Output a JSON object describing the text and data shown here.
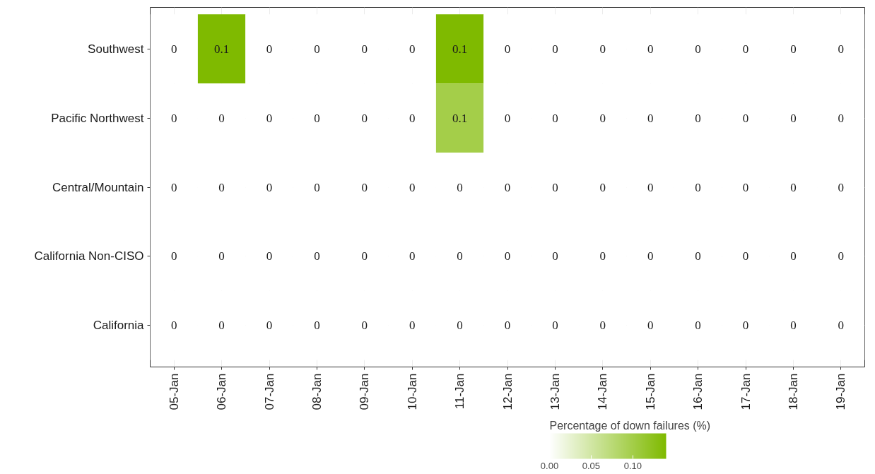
{
  "chart_data": {
    "type": "heatmap",
    "categories": [
      "05-Jan",
      "06-Jan",
      "07-Jan",
      "08-Jan",
      "09-Jan",
      "10-Jan",
      "11-Jan",
      "12-Jan",
      "13-Jan",
      "14-Jan",
      "15-Jan",
      "16-Jan",
      "17-Jan",
      "18-Jan",
      "19-Jan"
    ],
    "y_categories": [
      "Southwest",
      "Pacific Northwest",
      "Central/Mountain",
      "California Non-CISO",
      "California"
    ],
    "cells": [
      [
        0,
        0.14,
        0,
        0,
        0,
        0,
        0.14,
        0,
        0,
        0,
        0,
        0,
        0,
        0,
        0
      ],
      [
        0,
        0,
        0,
        0,
        0,
        0,
        0.1,
        0,
        0,
        0,
        0,
        0,
        0,
        0,
        0
      ],
      [
        0,
        0,
        0,
        0,
        0,
        0,
        0,
        0,
        0,
        0,
        0,
        0,
        0,
        0,
        0
      ],
      [
        0,
        0,
        0,
        0,
        0,
        0,
        0,
        0,
        0,
        0,
        0,
        0,
        0,
        0,
        0
      ],
      [
        0,
        0,
        0,
        0,
        0,
        0,
        0,
        0,
        0,
        0,
        0,
        0,
        0,
        0,
        0
      ]
    ],
    "cell_labels": [
      [
        "0",
        "0.1",
        "0",
        "0",
        "0",
        "0",
        "0.1",
        "0",
        "0",
        "0",
        "0",
        "0",
        "0",
        "0",
        "0"
      ],
      [
        "0",
        "0",
        "0",
        "0",
        "0",
        "0",
        "0.1",
        "0",
        "0",
        "0",
        "0",
        "0",
        "0",
        "0",
        "0"
      ],
      [
        "0",
        "0",
        "0",
        "0",
        "0",
        "0",
        "0",
        "0",
        "0",
        "0",
        "0",
        "0",
        "0",
        "0",
        "0"
      ],
      [
        "0",
        "0",
        "0",
        "0",
        "0",
        "0",
        "0",
        "0",
        "0",
        "0",
        "0",
        "0",
        "0",
        "0",
        "0"
      ],
      [
        "0",
        "0",
        "0",
        "0",
        "0",
        "0",
        "0",
        "0",
        "0",
        "0",
        "0",
        "0",
        "0",
        "0",
        "0"
      ]
    ],
    "clabel": "Percentage of down failures (%)",
    "clim": [
      0,
      0.14
    ],
    "cticks": [
      {
        "value": 0,
        "label": "0.00"
      },
      {
        "value": 0.05,
        "label": "0.05"
      },
      {
        "value": 0.1,
        "label": "0.10"
      }
    ],
    "color": "#7fba00",
    "grid": true
  }
}
